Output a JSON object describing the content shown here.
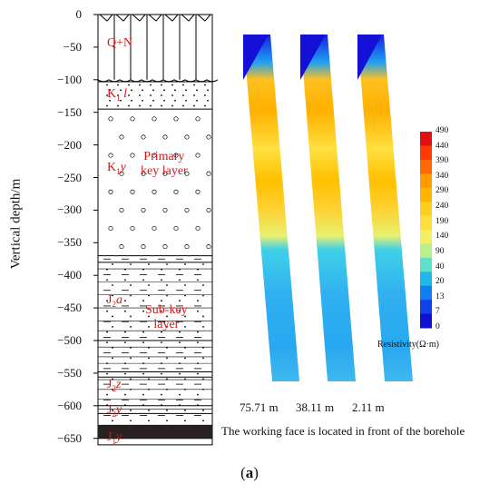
{
  "figure": {
    "caption_letter": "a",
    "y_axis_title": "Vertical depth/m",
    "depth_ticks": [
      "0",
      "−50",
      "−100",
      "−150",
      "−200",
      "−250",
      "−300",
      "−350",
      "−400",
      "−450",
      "−500",
      "−550",
      "−600",
      "−650"
    ],
    "layers": {
      "qn": "Q+N",
      "k1l": "K",
      "k1l_sub": "1",
      "k1l_suffix": "l",
      "k1y": "K",
      "k1y_sub": "1",
      "k1y_suffix": "y",
      "primary_key": "Primary\nkey layer",
      "j2a": "J",
      "j2a_sub": "2",
      "j2a_suffix": "a",
      "sub_key": "Sub-key\nlayer",
      "j2z": "J",
      "j2z_sub": "2",
      "j2z_suffix": "z",
      "j2y": "J",
      "j2y_sub": "2",
      "j2y_suffix": "y",
      "j1y": "J",
      "j1y_sub": "1",
      "j1y_suffix": "y"
    },
    "profiles": [
      {
        "distance": "75.71 m"
      },
      {
        "distance": "38.11 m"
      },
      {
        "distance": "2.11 m"
      }
    ],
    "note": "The working face is located in front of the borehole",
    "colorbar": {
      "title": "Resistivity(Ω·m)",
      "ticks": [
        "490",
        "440",
        "390",
        "340",
        "290",
        "240",
        "190",
        "140",
        "90",
        "40",
        "20",
        "13",
        "7",
        "0"
      ],
      "colors": [
        "#e01010",
        "#ff3a00",
        "#ff6a00",
        "#ff9a00",
        "#ffb400",
        "#ffcc20",
        "#ffdf40",
        "#f2ef60",
        "#b8f08a",
        "#5fe0c8",
        "#20b8e8",
        "#1080f0",
        "#1040e8",
        "#1010d0"
      ]
    }
  }
}
